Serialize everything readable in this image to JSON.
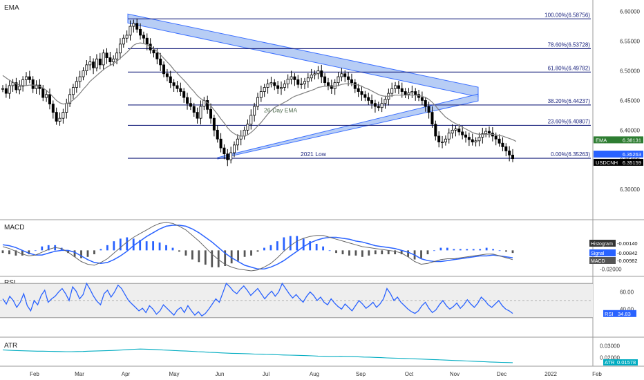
{
  "chart_data": [
    {
      "type": "line",
      "panel": "price",
      "pane_label": "EMA",
      "ylim": [
        6.27,
        6.61
      ],
      "y_ticks": [
        6.3,
        6.35,
        6.4,
        6.45,
        6.5,
        6.55,
        6.6
      ],
      "y_tick_labels": [
        "6.30000",
        "6.35000",
        "6.40000",
        "6.45000",
        "6.50000",
        "6.55000",
        "6.60000"
      ],
      "fib_levels": [
        {
          "label": "100.00%(6.58756)",
          "value": 6.58756
        },
        {
          "label": "78.60%(6.53728)",
          "value": 6.53728
        },
        {
          "label": "61.80%(6.49782)",
          "value": 6.49782
        },
        {
          "label": "38.20%(6.44237)",
          "value": 6.44237
        },
        {
          "label": "23.60%(6.40807)",
          "value": 6.40807
        },
        {
          "label": "0.00%(6.35263)",
          "value": 6.35263
        }
      ],
      "annotations": [
        "26-Day EMA",
        "2021 Low"
      ],
      "price_tags": [
        {
          "name": "EMA",
          "value": "6.38131",
          "color": "#2e7d32"
        },
        {
          "name": "",
          "value": "6.35263",
          "color": "#2962ff"
        },
        {
          "name": "USDCNH",
          "value": "6.35159",
          "color": "#000000"
        }
      ],
      "ohlc_close_series": [
        6.47,
        6.462,
        6.475,
        6.48,
        6.468,
        6.474,
        6.485,
        6.49,
        6.485,
        6.47,
        6.476,
        6.47,
        6.455,
        6.46,
        6.444,
        6.43,
        6.415,
        6.42,
        6.43,
        6.445,
        6.46,
        6.472,
        6.482,
        6.49,
        6.5,
        6.51,
        6.515,
        6.505,
        6.52,
        6.51,
        6.53,
        6.522,
        6.515,
        6.52,
        6.53,
        6.545,
        6.555,
        6.56,
        6.575,
        6.58,
        6.57,
        6.56,
        6.555,
        6.545,
        6.535,
        6.53,
        6.52,
        6.51,
        6.495,
        6.49,
        6.48,
        6.475,
        6.47,
        6.465,
        6.455,
        6.445,
        6.44,
        6.43,
        6.42,
        6.44,
        6.45,
        6.435,
        6.42,
        6.4,
        6.385,
        6.37,
        6.36,
        6.35,
        6.362,
        6.375,
        6.385,
        6.39,
        6.4,
        6.41,
        6.425,
        6.44,
        6.455,
        6.465,
        6.472,
        6.478,
        6.48,
        6.475,
        6.47,
        6.472,
        6.478,
        6.486,
        6.49,
        6.485,
        6.477,
        6.478,
        6.482,
        6.488,
        6.493,
        6.495,
        6.5,
        6.49,
        6.48,
        6.475,
        6.47,
        6.48,
        6.49,
        6.495,
        6.49,
        6.485,
        6.48,
        6.47,
        6.465,
        6.46,
        6.455,
        6.45,
        6.445,
        6.44,
        6.438,
        6.445,
        6.452,
        6.462,
        6.47,
        6.475,
        6.47,
        6.465,
        6.46,
        6.463,
        6.465,
        6.46,
        6.455,
        6.45,
        6.44,
        6.43,
        6.41,
        6.39,
        6.38,
        6.38,
        6.385,
        6.395,
        6.4,
        6.402,
        6.397,
        6.392,
        6.388,
        6.384,
        6.38,
        6.382,
        6.388,
        6.394,
        6.398,
        6.395,
        6.39,
        6.385,
        6.378,
        6.372,
        6.365,
        6.358,
        6.352
      ],
      "ema_series": [
        6.492,
        6.488,
        6.484,
        6.481,
        6.478,
        6.476,
        6.475,
        6.475,
        6.476,
        6.476,
        6.475,
        6.474,
        6.471,
        6.467,
        6.462,
        6.456,
        6.45,
        6.446,
        6.444,
        6.445,
        6.447,
        6.451,
        6.456,
        6.462,
        6.469,
        6.475,
        6.482,
        6.487,
        6.492,
        6.497,
        6.502,
        6.506,
        6.509,
        6.512,
        6.516,
        6.521,
        6.526,
        6.531,
        6.537,
        6.543,
        6.546,
        6.547,
        6.546,
        6.544,
        6.541,
        6.537,
        6.533,
        6.527,
        6.521,
        6.515,
        6.509,
        6.502,
        6.496,
        6.49,
        6.484,
        6.478,
        6.471,
        6.465,
        6.458,
        6.453,
        6.45,
        6.446,
        6.441,
        6.434,
        6.427,
        6.419,
        6.412,
        6.404,
        6.398,
        6.394,
        6.391,
        6.39,
        6.39,
        6.392,
        6.396,
        6.401,
        6.407,
        6.413,
        6.42,
        6.427,
        6.433,
        6.438,
        6.441,
        6.444,
        6.447,
        6.45,
        6.454,
        6.457,
        6.459,
        6.461,
        6.463,
        6.465,
        6.467,
        6.469,
        6.472,
        6.473,
        6.474,
        6.474,
        6.474,
        6.474,
        6.475,
        6.477,
        6.478,
        6.478,
        6.478,
        6.477,
        6.476,
        6.474,
        6.471,
        6.469,
        6.466,
        6.463,
        6.46,
        6.458,
        6.457,
        6.457,
        6.458,
        6.459,
        6.459,
        6.459,
        6.459,
        6.459,
        6.459,
        6.459,
        6.458,
        6.457,
        6.455,
        6.452,
        6.447,
        6.441,
        6.434,
        6.428,
        6.422,
        6.418,
        6.414,
        6.411,
        6.408,
        6.405,
        6.402,
        6.399,
        6.396,
        6.394,
        6.393,
        6.393,
        6.393,
        6.393,
        6.393,
        6.392,
        6.391,
        6.39,
        6.388,
        6.386,
        6.384,
        6.381
      ]
    },
    {
      "type": "line",
      "panel": "macd",
      "pane_label": "MACD",
      "ylim": [
        -0.025,
        0.03
      ],
      "y_tick_labels": [
        "-0.02000"
      ],
      "legend": [
        {
          "name": "Histogram",
          "value": "-0.00140",
          "color": "#333333"
        },
        {
          "name": "Signal",
          "value": "-0.00842",
          "color": "#2962ff"
        },
        {
          "name": "MACD",
          "value": "-0.00982",
          "color": "#555555"
        }
      ],
      "macd_series": [
        0.004,
        0.002,
        -0.001,
        -0.004,
        -0.006,
        -0.005,
        -0.002,
        0.001,
        0.003,
        0.002,
        -0.002,
        -0.007,
        -0.012,
        -0.015,
        -0.016,
        -0.013,
        -0.009,
        -0.003,
        0.003,
        0.009,
        0.014,
        0.018,
        0.022,
        0.026,
        0.029,
        0.03,
        0.029,
        0.026,
        0.022,
        0.016,
        0.01,
        0.003,
        -0.004,
        -0.01,
        -0.015,
        -0.018,
        -0.02,
        -0.021,
        -0.022,
        -0.021,
        -0.018,
        -0.014,
        -0.008,
        -0.001,
        0.005,
        0.01,
        0.013,
        0.015,
        0.016,
        0.016,
        0.014,
        0.012,
        0.01,
        0.008,
        0.006,
        0.004,
        0.003,
        0.002,
        0.001,
        0.0,
        -0.001,
        -0.003,
        -0.007,
        -0.012,
        -0.015,
        -0.014,
        -0.012,
        -0.01,
        -0.009,
        -0.009,
        -0.008,
        -0.007,
        -0.006,
        -0.005,
        -0.004,
        -0.004,
        -0.006,
        -0.008,
        -0.01
      ],
      "signal_series": [
        0.006,
        0.005,
        0.003,
        0.0,
        -0.003,
        -0.005,
        -0.005,
        -0.003,
        -0.001,
        0.0,
        0.0,
        -0.002,
        -0.006,
        -0.01,
        -0.013,
        -0.014,
        -0.013,
        -0.01,
        -0.006,
        -0.001,
        0.005,
        0.01,
        0.015,
        0.019,
        0.023,
        0.026,
        0.027,
        0.027,
        0.026,
        0.023,
        0.019,
        0.014,
        0.009,
        0.003,
        -0.003,
        -0.008,
        -0.012,
        -0.016,
        -0.018,
        -0.02,
        -0.02,
        -0.018,
        -0.015,
        -0.011,
        -0.006,
        -0.001,
        0.004,
        0.008,
        0.011,
        0.013,
        0.014,
        0.014,
        0.013,
        0.012,
        0.01,
        0.009,
        0.007,
        0.005,
        0.004,
        0.003,
        0.002,
        0.0,
        -0.002,
        -0.005,
        -0.009,
        -0.011,
        -0.012,
        -0.012,
        -0.011,
        -0.01,
        -0.009,
        -0.008,
        -0.007,
        -0.006,
        -0.006,
        -0.005,
        -0.006,
        -0.007,
        -0.008
      ]
    },
    {
      "type": "line",
      "panel": "rsi",
      "pane_label": "RSI",
      "ylim": [
        25,
        75
      ],
      "y_tick_labels": [
        "60.00",
        "40.00"
      ],
      "legend": [
        {
          "name": "RSI",
          "value": "34.83",
          "color": "#2962ff"
        }
      ],
      "band": [
        30,
        70
      ],
      "midline": 50,
      "rsi_series": [
        52,
        46,
        55,
        50,
        42,
        48,
        58,
        44,
        38,
        50,
        45,
        56,
        62,
        48,
        52,
        55,
        60,
        64,
        58,
        50,
        66,
        61,
        52,
        57,
        70,
        63,
        55,
        49,
        45,
        58,
        62,
        54,
        60,
        68,
        64,
        57,
        50,
        46,
        42,
        38,
        41,
        36,
        44,
        40,
        34,
        38,
        45,
        41,
        37,
        33,
        39,
        42,
        36,
        44,
        38,
        33,
        37,
        32,
        35,
        40,
        46,
        52,
        48,
        59,
        70,
        66,
        61,
        58,
        63,
        67,
        62,
        56,
        60,
        64,
        58,
        52,
        57,
        61,
        55,
        60,
        70,
        64,
        58,
        53,
        57,
        52,
        48,
        55,
        60,
        56,
        50,
        54,
        48,
        45,
        52,
        47,
        43,
        40,
        46,
        42,
        38,
        44,
        50,
        46,
        41,
        44,
        48,
        42,
        46,
        52,
        64,
        58,
        50,
        54,
        48,
        44,
        40,
        37,
        35,
        38,
        44,
        48,
        41,
        36,
        39,
        45,
        50,
        44,
        40,
        43,
        47,
        41,
        45,
        51,
        46,
        42,
        47,
        54,
        50,
        45,
        42,
        46,
        50,
        44,
        40,
        38,
        35
      ],
      "last_value": 34.83
    },
    {
      "type": "line",
      "panel": "atr",
      "pane_label": "ATR",
      "ylim": [
        0.014,
        0.036
      ],
      "y_tick_labels": [
        "0.03000",
        "0.02000"
      ],
      "legend": [
        {
          "name": "ATR",
          "value": "0.01578",
          "color": "#00acc1"
        }
      ],
      "atr_series": [
        0.0265,
        0.0262,
        0.026,
        0.0258,
        0.0257,
        0.0255,
        0.0254,
        0.0254,
        0.0253,
        0.0252,
        0.0251,
        0.025,
        0.025,
        0.0251,
        0.0252,
        0.0254,
        0.0255,
        0.0257,
        0.0258,
        0.026,
        0.0262,
        0.0265,
        0.0268,
        0.027,
        0.0272,
        0.0271,
        0.0269,
        0.0267,
        0.0264,
        0.0262,
        0.0259,
        0.0257,
        0.0255,
        0.0253,
        0.025,
        0.0248,
        0.0245,
        0.0243,
        0.024,
        0.0238,
        0.0236,
        0.0235,
        0.0234,
        0.0232,
        0.023,
        0.0229,
        0.0227,
        0.0226,
        0.0224,
        0.0222,
        0.0221,
        0.022,
        0.0219,
        0.0217,
        0.0215,
        0.0213,
        0.0212,
        0.021,
        0.021,
        0.0211,
        0.021,
        0.0209,
        0.0207,
        0.0205,
        0.0204,
        0.0202,
        0.02,
        0.0198,
        0.0196,
        0.0195,
        0.0193,
        0.0192,
        0.019,
        0.0188,
        0.0186,
        0.0184,
        0.0182,
        0.018,
        0.0178,
        0.0176,
        0.0174,
        0.0172,
        0.017,
        0.0168,
        0.0166,
        0.0164,
        0.0162,
        0.016,
        0.0159,
        0.0158
      ]
    },
    {
      "type": "line",
      "panel": "time-axis",
      "x_tick_labels": [
        "Feb",
        "Mar",
        "Apr",
        "May",
        "Jun",
        "Jul",
        "Aug",
        "Sep",
        "Oct",
        "Nov",
        "Dec",
        "2022",
        "Feb"
      ]
    }
  ],
  "colors": {
    "candle": "#000000",
    "ema": "#7f7f7f",
    "fib_line": "#1a237e",
    "channel_fill": "#b0c8f5",
    "channel_stroke": "#2962ff",
    "macd_blue": "#2962ff",
    "rsi_line": "#2962ff",
    "rsi_band": "#eeeeee",
    "atr_line": "#00acc1",
    "pane_border": "#999999",
    "ema_label": "#4f6b4f"
  }
}
